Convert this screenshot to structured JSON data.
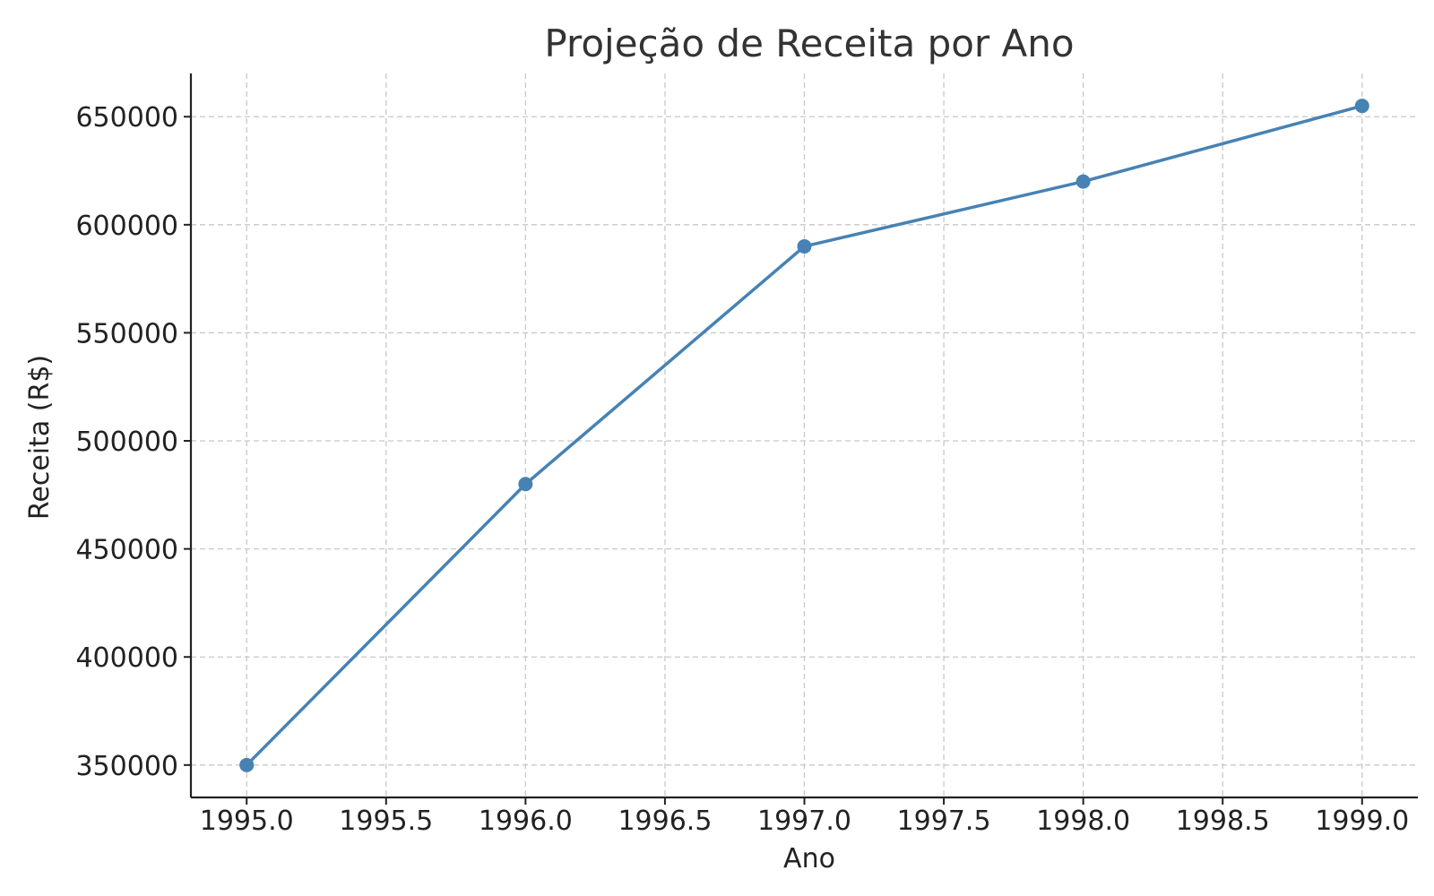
{
  "chart_data": {
    "type": "line",
    "title": "Projeção de Receita por Ano",
    "xlabel": "Ano",
    "ylabel": "Receita (R$)",
    "xlim": [
      1994.8,
      1999.2
    ],
    "ylim": [
      335000,
      670000
    ],
    "x_ticks": [
      1995.0,
      1995.5,
      1996.0,
      1996.5,
      1997.0,
      1997.5,
      1998.0,
      1998.5,
      1999.0
    ],
    "x_tick_labels": [
      "1995.0",
      "1995.5",
      "1996.0",
      "1996.5",
      "1997.0",
      "1997.5",
      "1998.0",
      "1998.5",
      "1999.0"
    ],
    "y_ticks": [
      350000,
      400000,
      450000,
      500000,
      550000,
      600000,
      650000
    ],
    "y_tick_labels": [
      "350000",
      "400000",
      "450000",
      "500000",
      "550000",
      "600000",
      "650000"
    ],
    "grid": true,
    "series": [
      {
        "x": [
          1995,
          1996,
          1997,
          1998,
          1999
        ],
        "values": [
          350000,
          480000,
          590000,
          620000,
          655000
        ],
        "color": "#4682b4",
        "marker": "circle"
      }
    ]
  }
}
